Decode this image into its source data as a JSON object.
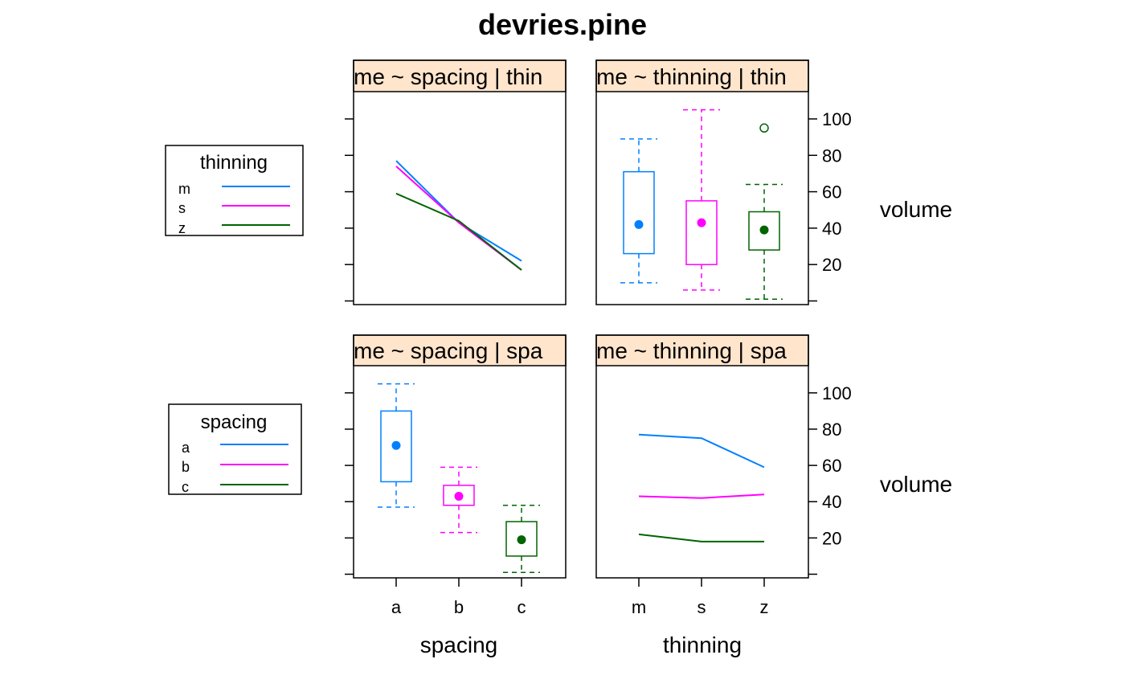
{
  "title": "devries.pine",
  "colors": {
    "m": "#0080ff",
    "s": "#ff00ff",
    "z": "#006400",
    "strip": "#ffe5cc",
    "axis": "#000000"
  },
  "legends": {
    "thinning": {
      "title": "thinning",
      "entries": [
        "m",
        "s",
        "z"
      ]
    },
    "spacing": {
      "title": "spacing",
      "entries": [
        "a",
        "b",
        "c"
      ]
    }
  },
  "x_axes": {
    "left_label": "spacing",
    "right_label": "thinning"
  },
  "y_axes": {
    "label": "volume",
    "ticks": [
      "100",
      "80",
      "60",
      "40",
      "20"
    ]
  },
  "chart_data": [
    {
      "type": "line",
      "strip_label": "me ~ spacing | thin",
      "categories": [
        "a",
        "b",
        "c"
      ],
      "series": [
        {
          "name": "m",
          "values": [
            77,
            43,
            22
          ]
        },
        {
          "name": "s",
          "values": [
            74,
            43,
            17
          ]
        },
        {
          "name": "z",
          "values": [
            59,
            44,
            17
          ]
        }
      ],
      "ylim": [
        -2,
        115
      ]
    },
    {
      "type": "box",
      "strip_label": "me ~ thinning | thin",
      "categories": [
        "m",
        "s",
        "z"
      ],
      "boxes": [
        {
          "name": "m",
          "min": 10,
          "q1": 26,
          "median": 42,
          "q3": 71,
          "max": 89,
          "outliers": []
        },
        {
          "name": "s",
          "min": 6,
          "q1": 20,
          "median": 43,
          "q3": 55,
          "max": 105,
          "outliers": []
        },
        {
          "name": "z",
          "min": 1,
          "q1": 28,
          "median": 39,
          "q3": 49,
          "max": 64,
          "outliers": [
            95
          ]
        }
      ],
      "ylim": [
        -2,
        115
      ]
    },
    {
      "type": "box",
      "strip_label": "me ~ spacing | spa",
      "categories": [
        "a",
        "b",
        "c"
      ],
      "boxes": [
        {
          "name": "a",
          "min": 37,
          "q1": 51,
          "median": 71,
          "q3": 90,
          "max": 105,
          "outliers": []
        },
        {
          "name": "b",
          "min": 23,
          "q1": 38,
          "median": 43,
          "q3": 49,
          "max": 59,
          "outliers": []
        },
        {
          "name": "c",
          "min": 1,
          "q1": 10,
          "median": 19,
          "q3": 29,
          "max": 38,
          "outliers": []
        }
      ],
      "ylim": [
        -2,
        115
      ]
    },
    {
      "type": "line",
      "strip_label": "me ~ thinning | spa",
      "categories": [
        "m",
        "s",
        "z"
      ],
      "series": [
        {
          "name": "a",
          "values": [
            77,
            75,
            59
          ]
        },
        {
          "name": "b",
          "values": [
            43,
            42,
            44
          ]
        },
        {
          "name": "c",
          "values": [
            22,
            18,
            18
          ]
        }
      ],
      "ylim": [
        -2,
        115
      ]
    }
  ]
}
